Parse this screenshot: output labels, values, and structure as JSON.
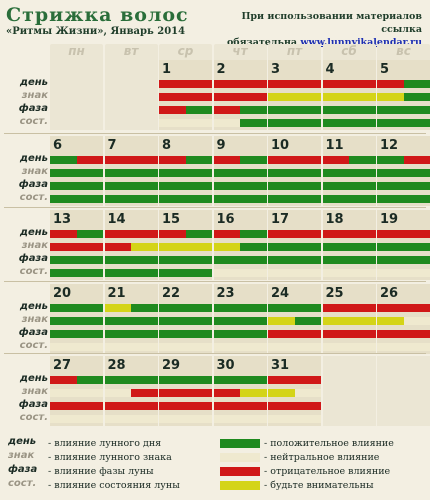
{
  "header": {
    "title": "Стрижка волос",
    "subtitle": "«Ритмы Жизни», Январь 2014",
    "notice_line1": "При использовании материалов ссылка",
    "notice_line2": "обязательна",
    "notice_link": "www.lunnyjkalendar.ru"
  },
  "weekdays": [
    "пн",
    "вт",
    "ср",
    "чт",
    "пт",
    "сб",
    "вс"
  ],
  "row_labels": [
    "день",
    "знак",
    "фаза",
    "сост."
  ],
  "colors": {
    "positive": "#1f8a1f",
    "neutral": "#efe9cf",
    "negative": "#d01818",
    "attention": "#d4d418",
    "label_day": "#1b2b24",
    "label_sign": "#9a9484",
    "label_phase": "#1b2b24",
    "label_state": "#9a9484"
  },
  "calendar": {
    "weeks": [
      {
        "days": [
          {
            "col": 0,
            "num": ""
          },
          {
            "col": 1,
            "num": ""
          },
          {
            "col": 2,
            "num": "1",
            "rows": [
              [
                "negative"
              ],
              [
                "negative"
              ],
              [
                "negative",
                "positive"
              ],
              [
                "neutral"
              ]
            ]
          },
          {
            "col": 3,
            "num": "2",
            "rows": [
              [
                "negative"
              ],
              [
                "negative"
              ],
              [
                "negative",
                "positive"
              ],
              [
                "neutral",
                "positive"
              ]
            ]
          },
          {
            "col": 4,
            "num": "3",
            "rows": [
              [
                "negative"
              ],
              [
                "attention"
              ],
              [
                "positive"
              ],
              [
                "positive"
              ]
            ]
          },
          {
            "col": 5,
            "num": "4",
            "rows": [
              [
                "negative"
              ],
              [
                "attention"
              ],
              [
                "positive"
              ],
              [
                "positive"
              ]
            ]
          },
          {
            "col": 6,
            "num": "5",
            "rows": [
              [
                "negative",
                "positive"
              ],
              [
                "attention",
                "positive"
              ],
              [
                "positive"
              ],
              [
                "positive"
              ]
            ]
          }
        ]
      },
      {
        "days": [
          {
            "col": 0,
            "num": "6",
            "rows": [
              [
                "positive",
                "negative"
              ],
              [
                "positive"
              ],
              [
                "positive"
              ],
              [
                "positive"
              ]
            ]
          },
          {
            "col": 1,
            "num": "7",
            "rows": [
              [
                "negative"
              ],
              [
                "positive"
              ],
              [
                "positive"
              ],
              [
                "positive"
              ]
            ]
          },
          {
            "col": 2,
            "num": "8",
            "rows": [
              [
                "negative",
                "positive"
              ],
              [
                "positive"
              ],
              [
                "positive"
              ],
              [
                "positive"
              ]
            ]
          },
          {
            "col": 3,
            "num": "9",
            "rows": [
              [
                "negative",
                "positive"
              ],
              [
                "positive"
              ],
              [
                "positive"
              ],
              [
                "positive"
              ]
            ]
          },
          {
            "col": 4,
            "num": "10",
            "rows": [
              [
                "negative"
              ],
              [
                "positive"
              ],
              [
                "positive"
              ],
              [
                "positive"
              ]
            ]
          },
          {
            "col": 5,
            "num": "11",
            "rows": [
              [
                "negative",
                "positive"
              ],
              [
                "positive"
              ],
              [
                "positive"
              ],
              [
                "positive"
              ]
            ]
          },
          {
            "col": 6,
            "num": "12",
            "rows": [
              [
                "positive",
                "negative"
              ],
              [
                "positive"
              ],
              [
                "positive"
              ],
              [
                "positive"
              ]
            ]
          }
        ]
      },
      {
        "days": [
          {
            "col": 0,
            "num": "13",
            "rows": [
              [
                "negative",
                "positive"
              ],
              [
                "negative"
              ],
              [
                "positive"
              ],
              [
                "positive"
              ]
            ]
          },
          {
            "col": 1,
            "num": "14",
            "rows": [
              [
                "negative"
              ],
              [
                "negative",
                "attention"
              ],
              [
                "positive"
              ],
              [
                "positive"
              ]
            ]
          },
          {
            "col": 2,
            "num": "15",
            "rows": [
              [
                "negative",
                "positive"
              ],
              [
                "attention"
              ],
              [
                "positive"
              ],
              [
                "positive"
              ]
            ]
          },
          {
            "col": 3,
            "num": "16",
            "rows": [
              [
                "negative",
                "positive"
              ],
              [
                "attention",
                "positive"
              ],
              [
                "positive"
              ],
              [
                "neutral"
              ]
            ]
          },
          {
            "col": 4,
            "num": "17",
            "rows": [
              [
                "negative"
              ],
              [
                "positive"
              ],
              [
                "positive"
              ],
              [
                "neutral"
              ]
            ]
          },
          {
            "col": 5,
            "num": "18",
            "rows": [
              [
                "negative"
              ],
              [
                "positive"
              ],
              [
                "positive"
              ],
              [
                "neutral"
              ]
            ]
          },
          {
            "col": 6,
            "num": "19",
            "rows": [
              [
                "negative"
              ],
              [
                "positive"
              ],
              [
                "positive"
              ],
              [
                "neutral"
              ]
            ]
          }
        ]
      },
      {
        "days": [
          {
            "col": 0,
            "num": "20",
            "rows": [
              [
                "positive"
              ],
              [
                "positive"
              ],
              [
                "positive"
              ],
              [
                "neutral"
              ]
            ]
          },
          {
            "col": 1,
            "num": "21",
            "rows": [
              [
                "attention",
                "positive"
              ],
              [
                "positive"
              ],
              [
                "positive"
              ],
              [
                "neutral"
              ]
            ]
          },
          {
            "col": 2,
            "num": "22",
            "rows": [
              [
                "positive"
              ],
              [
                "positive"
              ],
              [
                "positive"
              ],
              [
                "neutral"
              ]
            ]
          },
          {
            "col": 3,
            "num": "23",
            "rows": [
              [
                "positive"
              ],
              [
                "positive"
              ],
              [
                "positive"
              ],
              [
                "neutral"
              ]
            ]
          },
          {
            "col": 4,
            "num": "24",
            "rows": [
              [
                "positive"
              ],
              [
                "attention",
                "positive"
              ],
              [
                "negative"
              ],
              [
                "neutral"
              ]
            ]
          },
          {
            "col": 5,
            "num": "25",
            "rows": [
              [
                "negative"
              ],
              [
                "attention"
              ],
              [
                "negative"
              ],
              [
                "neutral"
              ]
            ]
          },
          {
            "col": 6,
            "num": "26",
            "rows": [
              [
                "negative"
              ],
              [
                "attention",
                "neutral"
              ],
              [
                "negative"
              ],
              [
                "neutral"
              ]
            ]
          }
        ]
      },
      {
        "days": [
          {
            "col": 0,
            "num": "27",
            "rows": [
              [
                "negative",
                "positive"
              ],
              [
                "neutral"
              ],
              [
                "negative"
              ],
              [
                "neutral"
              ]
            ]
          },
          {
            "col": 1,
            "num": "28",
            "rows": [
              [
                "positive"
              ],
              [
                "neutral",
                "negative"
              ],
              [
                "negative"
              ],
              [
                "neutral"
              ]
            ]
          },
          {
            "col": 2,
            "num": "29",
            "rows": [
              [
                "positive"
              ],
              [
                "negative"
              ],
              [
                "negative"
              ],
              [
                "neutral"
              ]
            ]
          },
          {
            "col": 3,
            "num": "30",
            "rows": [
              [
                "positive"
              ],
              [
                "negative",
                "attention"
              ],
              [
                "negative"
              ],
              [
                "neutral"
              ]
            ]
          },
          {
            "col": 4,
            "num": "31",
            "rows": [
              [
                "negative"
              ],
              [
                "attention",
                "neutral"
              ],
              [
                "negative"
              ],
              [
                "neutral"
              ]
            ]
          },
          {
            "col": 5,
            "num": ""
          },
          {
            "col": 6,
            "num": ""
          }
        ]
      }
    ]
  },
  "legend": {
    "left": [
      {
        "key": "день",
        "text": "- влияние лунного дня"
      },
      {
        "key": "знак",
        "text": "- влияние лунного знака"
      },
      {
        "key": "фаза",
        "text": "- влияние фазы луны"
      },
      {
        "key": "сост.",
        "text": "- влияние состояния луны"
      }
    ],
    "right": [
      {
        "color": "positive",
        "text": "- положительное влияние"
      },
      {
        "color": "neutral",
        "text": "- нейтральное влияние"
      },
      {
        "color": "negative",
        "text": "- отрицательное влияние"
      },
      {
        "color": "attention",
        "text": "- будьте внимательны"
      }
    ]
  }
}
